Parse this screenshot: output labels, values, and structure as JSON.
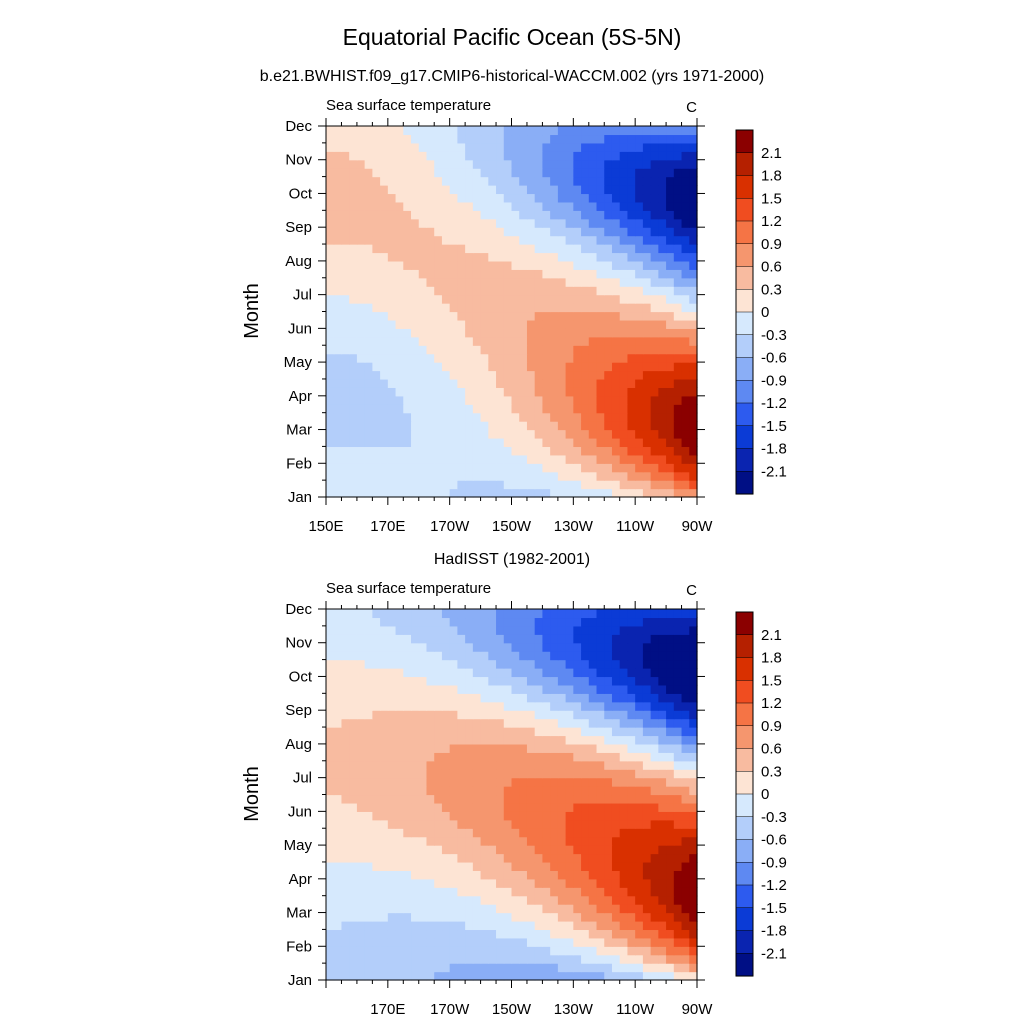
{
  "page": {
    "title": "Equatorial Pacific Ocean (5S-5N)"
  },
  "chart_data": [
    {
      "type": "heatmap",
      "title": "b.e21.BWHIST.f09_g17.CMIP6-historical-WACCM.002 (yrs 1971-2000)",
      "left_string": "Sea surface temperature",
      "right_string": "C",
      "xlabel": "",
      "ylabel": "Month",
      "x_ticks": [
        "150E",
        "170E",
        "170W",
        "150W",
        "130W",
        "110W",
        "90W"
      ],
      "x_lon_range": [
        150,
        270
      ],
      "y_ticks": [
        "Jan",
        "Feb",
        "Mar",
        "Apr",
        "May",
        "Jun",
        "Jul",
        "Aug",
        "Sep",
        "Oct",
        "Nov",
        "Dec"
      ],
      "colorbar_labels": [
        "2.1",
        "1.8",
        "1.5",
        "1.2",
        "0.9",
        "0.6",
        "0.3",
        "0",
        "-0.3",
        "-0.6",
        "-0.9",
        "-1.2",
        "-1.5",
        "-1.8",
        "-2.1"
      ],
      "colorbar_colors": [
        "#8B0000",
        "#B52000",
        "#D93000",
        "#F04D20",
        "#F57445",
        "#F5966E",
        "#F8BBA0",
        "#FDE4D4",
        "#D6E9FD",
        "#B3CEFA",
        "#8AAEF6",
        "#5E89F2",
        "#2D5BEF",
        "#0B3BD6",
        "#0A24B0",
        "#000F85"
      ],
      "grid": false,
      "legend": "right colorbar",
      "field": {
        "eq_amp": -0.4,
        "eq_phase": 3,
        "east_amp": 2.4,
        "east_phase": 2.5,
        "slope": 0.45,
        "bias": 0
      }
    },
    {
      "type": "heatmap",
      "title": "HadISST (1982-2001)",
      "left_string": "Sea surface temperature",
      "right_string": "C",
      "xlabel": "",
      "ylabel": "Month",
      "x_ticks": [
        "",
        "170E",
        "170W",
        "150W",
        "130W",
        "110W",
        "90W"
      ],
      "x_lon_range": [
        150,
        270
      ],
      "y_ticks": [
        "Jan",
        "Feb",
        "Mar",
        "Apr",
        "May",
        "Jun",
        "Jul",
        "Aug",
        "Sep",
        "Oct",
        "Nov",
        "Dec"
      ],
      "colorbar_labels": [
        "2.1",
        "1.8",
        "1.5",
        "1.2",
        "0.9",
        "0.6",
        "0.3",
        "0",
        "-0.3",
        "-0.6",
        "-0.9",
        "-1.2",
        "-1.5",
        "-1.8",
        "-2.1"
      ],
      "colorbar_colors": [
        "#8B0000",
        "#B52000",
        "#D93000",
        "#F04D20",
        "#F57445",
        "#F5966E",
        "#F8BBA0",
        "#FDE4D4",
        "#D6E9FD",
        "#B3CEFA",
        "#8AAEF6",
        "#5E89F2",
        "#2D5BEF",
        "#0B3BD6",
        "#0A24B0",
        "#000F85"
      ],
      "grid": false,
      "legend": "right colorbar",
      "field": {
        "eq_amp": 0.35,
        "eq_phase": 6.5,
        "east_amp": 2.5,
        "east_phase": 3.0,
        "slope": 0.45,
        "bias": 0
      }
    }
  ]
}
